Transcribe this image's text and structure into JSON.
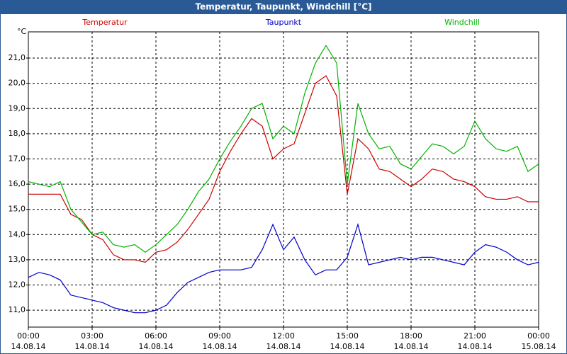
{
  "chart_data": {
    "type": "line",
    "title": "Temperatur, Taupunkt, Windchill [°C]",
    "y_label": "°C",
    "x": [
      0,
      0.5,
      1,
      1.5,
      2,
      2.5,
      3,
      3.5,
      4,
      4.5,
      5,
      5.5,
      6,
      6.5,
      7,
      7.5,
      8,
      8.5,
      9,
      9.5,
      10,
      10.5,
      11,
      11.5,
      12,
      12.5,
      13,
      13.5,
      14,
      14.5,
      15,
      15.5,
      16,
      16.5,
      17,
      17.5,
      18,
      18.5,
      19,
      19.5,
      20,
      20.5,
      21,
      21.5,
      22,
      22.5,
      23,
      23.5,
      24
    ],
    "series": [
      {
        "name": "Temperatur",
        "color": "#cc0000",
        "values": [
          15.6,
          15.6,
          15.6,
          15.6,
          14.8,
          14.6,
          14.0,
          13.8,
          13.2,
          13.0,
          13.0,
          12.9,
          13.3,
          13.4,
          13.7,
          14.2,
          14.8,
          15.4,
          16.5,
          17.3,
          18.0,
          18.6,
          18.3,
          17.0,
          17.4,
          17.6,
          18.8,
          20.0,
          20.3,
          19.5,
          15.6,
          17.8,
          17.4,
          16.6,
          16.5,
          16.2,
          15.9,
          16.2,
          16.6,
          16.5,
          16.2,
          16.1,
          15.9,
          15.5,
          15.4,
          15.4,
          15.5,
          15.3,
          15.3
        ]
      },
      {
        "name": "Taupunkt",
        "color": "#0000cc",
        "values": [
          12.3,
          12.5,
          12.4,
          12.2,
          11.6,
          11.5,
          11.4,
          11.3,
          11.1,
          11.0,
          10.9,
          10.9,
          11.0,
          11.2,
          11.7,
          12.1,
          12.3,
          12.5,
          12.6,
          12.6,
          12.6,
          12.7,
          13.4,
          14.4,
          13.4,
          13.9,
          13.0,
          12.4,
          12.6,
          12.6,
          13.1,
          14.4,
          12.8,
          12.9,
          13.0,
          13.1,
          13.0,
          13.1,
          13.1,
          13.0,
          12.9,
          12.8,
          13.3,
          13.6,
          13.5,
          13.3,
          13.0,
          12.8,
          12.9
        ]
      },
      {
        "name": "Windchill",
        "color": "#00b400",
        "values": [
          16.1,
          16.0,
          15.9,
          16.1,
          15.0,
          14.5,
          14.0,
          14.1,
          13.6,
          13.5,
          13.6,
          13.3,
          13.6,
          14.0,
          14.4,
          15.0,
          15.7,
          16.2,
          17.0,
          17.7,
          18.3,
          19.0,
          19.2,
          17.8,
          18.3,
          18.0,
          19.6,
          20.8,
          21.5,
          20.8,
          16.0,
          19.2,
          18.0,
          17.4,
          17.5,
          16.8,
          16.6,
          17.1,
          17.6,
          17.5,
          17.2,
          17.5,
          18.5,
          17.8,
          17.4,
          17.3,
          17.5,
          16.5,
          16.8
        ]
      }
    ],
    "xlim": [
      0,
      24
    ],
    "xticks": [
      {
        "value": 0,
        "label": "00:00"
      },
      {
        "value": 3,
        "label": "03:00"
      },
      {
        "value": 6,
        "label": "06:00"
      },
      {
        "value": 9,
        "label": "09:00"
      },
      {
        "value": 12,
        "label": "12:00"
      },
      {
        "value": 15,
        "label": "15:00"
      },
      {
        "value": 18,
        "label": "18:00"
      },
      {
        "value": 21,
        "label": "21:00"
      },
      {
        "value": 24,
        "label": "00:00"
      }
    ],
    "xtick_dates": [
      "14.08.14",
      "14.08.14",
      "14.08.14",
      "14.08.14",
      "14.08.14",
      "14.08.14",
      "14.08.14",
      "14.08.14",
      "15.08.14"
    ],
    "ylim": [
      10.33,
      22.04
    ],
    "yticks": [
      {
        "value": 11,
        "label": "11,0"
      },
      {
        "value": 12,
        "label": "12,0"
      },
      {
        "value": 13,
        "label": "13,0"
      },
      {
        "value": 14,
        "label": "14,0"
      },
      {
        "value": 15,
        "label": "15,0"
      },
      {
        "value": 16,
        "label": "16,0"
      },
      {
        "value": 17,
        "label": "17,0"
      },
      {
        "value": 18,
        "label": "18,0"
      },
      {
        "value": 19,
        "label": "19,0"
      },
      {
        "value": 20,
        "label": "20,0"
      },
      {
        "value": 21,
        "label": "21,0"
      }
    ],
    "grid": true
  }
}
